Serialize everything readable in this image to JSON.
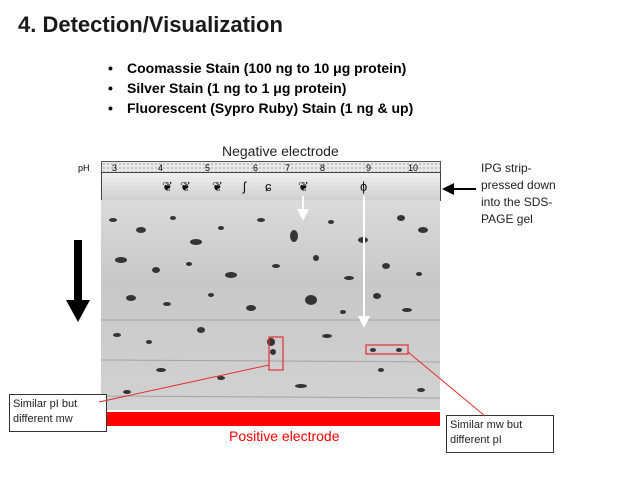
{
  "title": "4. Detection/Visualization",
  "bullets": [
    "Coomassie Stain (100 ng to 10 μg protein)",
    "Silver Stain (1 ng to 1 μg protein)",
    "Fluorescent (Sypro Ruby) Stain (1 ng & up)"
  ],
  "negative_label": "Negative electrode",
  "positive_label": "Positive electrode",
  "ph_label": "pH",
  "ph_ticks": [
    "3",
    "4",
    "5",
    "6",
    "7",
    "8",
    "9",
    "10"
  ],
  "ipg_note": "IPG strip-pressed down into the SDS-PAGE gel",
  "note_left": "Similar pI but different mw",
  "note_right": "Similar mw but different pI",
  "colors": {
    "electrode_positive": "#ff0000",
    "highlight_box": "#e03030"
  },
  "icons": [
    "protein-fold-icon"
  ]
}
